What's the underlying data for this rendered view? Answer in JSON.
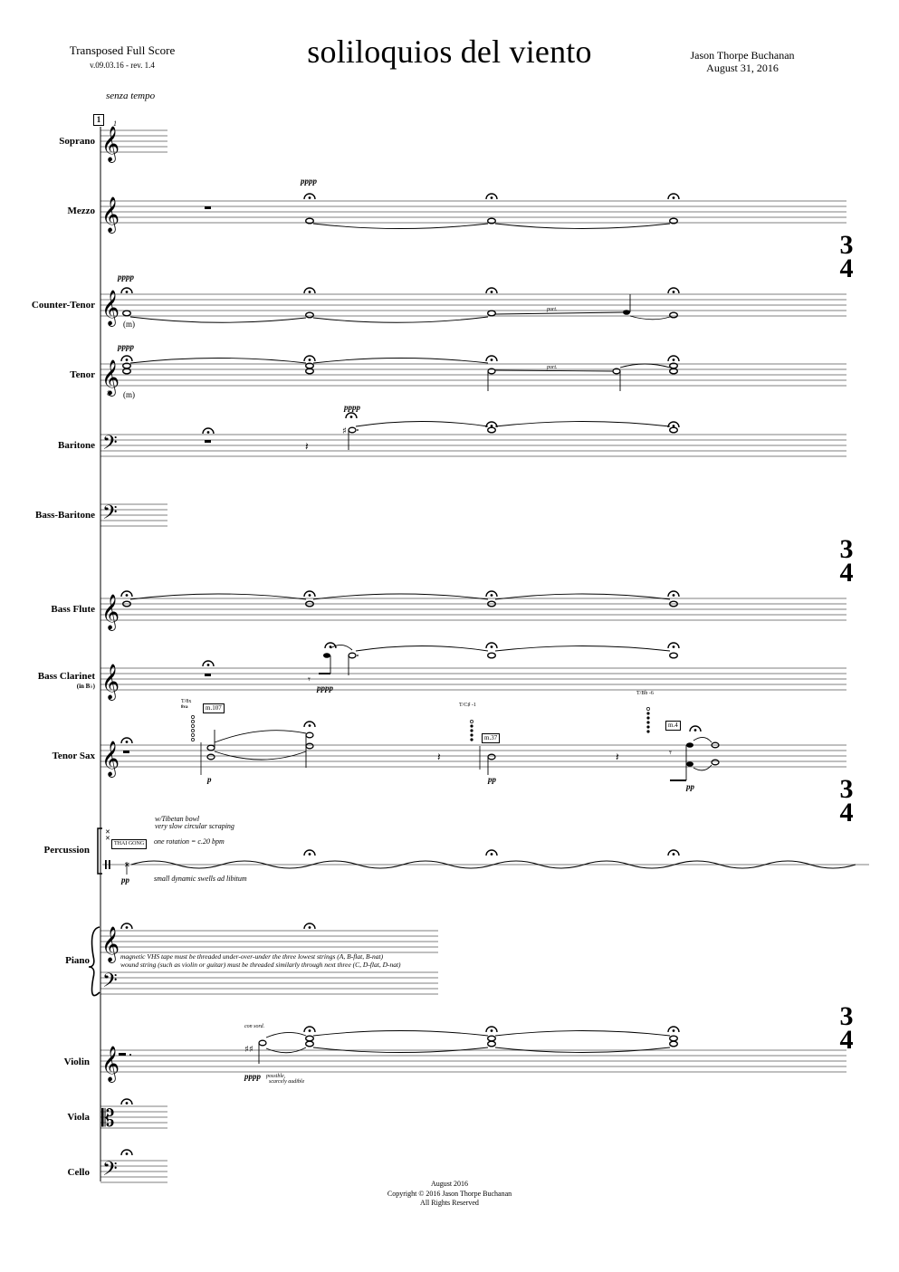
{
  "header": {
    "score_type": "Transposed Full Score",
    "version": "v.09.03.16 - rev. 1.4",
    "title": "soliloquios del viento",
    "composer": "Jason Thorpe Buchanan",
    "date": "August 31, 2016"
  },
  "tempo": "senza tempo",
  "rehearsal": "1",
  "time_signature": {
    "numerator": "3",
    "denominator": "4"
  },
  "instruments": {
    "soprano": "Soprano",
    "mezzo": "Mezzo",
    "counter_tenor": "Counter-Tenor",
    "tenor": "Tenor",
    "baritone": "Baritone",
    "bass_baritone": "Bass-Baritone",
    "bass_flute": "Bass Flute",
    "bass_clarinet": "Bass Clarinet",
    "bass_clarinet_sub": "(in B♭)",
    "tenor_sax": "Tenor Sax",
    "percussion": "Percussion",
    "piano": "Piano",
    "violin": "Violin",
    "viola": "Viola",
    "cello": "Cello"
  },
  "marks": {
    "soprano_num": "1",
    "pppp": "pppp",
    "pp": "pp",
    "p": "p",
    "m": "(m)",
    "port": "port.",
    "sax_fing1": "T/8x",
    "sax_fing1b": "8va",
    "sax_m1": "m.107",
    "sax_fing2": "T/C♯ -1",
    "sax_m2": "m.37",
    "sax_fing3": "T/Bb -6",
    "sax_m3": "m.4",
    "perc_bow": "w/Tibetan bowl",
    "perc_scrape": "very slow circular scraping",
    "perc_inst": "THAI GONG",
    "perc_rotation": "one rotation = c.20 bpm",
    "perc_swell": "small dynamic swells ad libitum",
    "piano_note1": "magnetic VHS tape must be threaded under-over-under the three lowest strings (A, B-flat, B-nat)",
    "piano_note2": "wound string (such as violin or guitar) must be threaded similarly through next three (C, D-flat, D-nat)",
    "violin_sord": "con sord.",
    "violin_dyn_text1": "possible,",
    "violin_dyn_text2": "scarcely audible"
  },
  "footer": {
    "line1": "August 2016",
    "line2": "Copyright © 2016 Jason Thorpe Buchanan",
    "line3": "All Rights Reserved"
  }
}
